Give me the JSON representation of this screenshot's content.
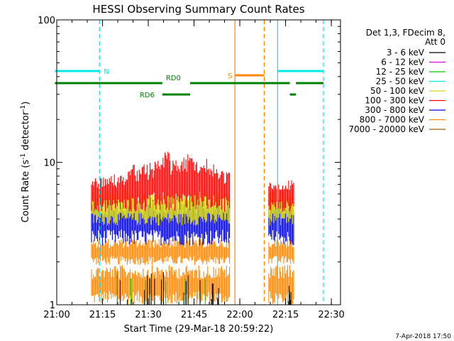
{
  "chart_data": {
    "type": "line",
    "title": "HESSI Observing Summary Count Rates",
    "xlabel": "Start Time (29-Mar-18 20:59:22)",
    "ylabel_main": "Count Rate (s",
    "ylabel_sup1": "-1",
    "ylabel_mid": " detector",
    "ylabel_sup2": "-1",
    "ylabel_end": ")",
    "yscale": "log",
    "ylim": [
      1,
      100
    ],
    "xlim_min": [
      0.6,
      93.6
    ],
    "yticks": [
      {
        "value": 1,
        "label": "1"
      },
      {
        "value": 10,
        "label": "10"
      },
      {
        "value": 100,
        "label": "100"
      }
    ],
    "xticks": [
      {
        "min": 0.6,
        "label": "21:00"
      },
      {
        "min": 15.6,
        "label": "21:15"
      },
      {
        "min": 30.6,
        "label": "21:30"
      },
      {
        "min": 45.6,
        "label": "21:45"
      },
      {
        "min": 60.6,
        "label": "22:00"
      },
      {
        "min": 75.6,
        "label": "22:15"
      },
      {
        "min": 90.6,
        "label": "22:30"
      }
    ],
    "legend_title": [
      "Det 1,3, FDecim 8,",
      "Att 0"
    ],
    "legend_position": "right",
    "series": [
      {
        "name": "3 - 6 keV",
        "color": "#000000"
      },
      {
        "name": "6 - 12 keV",
        "color": "#e000e0"
      },
      {
        "name": "12 - 25 keV",
        "color": "#00d000"
      },
      {
        "name": "25 - 50 keV",
        "color": "#00e8e8"
      },
      {
        "name": "50 - 100 keV",
        "color": "#d8d800"
      },
      {
        "name": "100 - 300 keV",
        "color": "#ff0000"
      },
      {
        "name": "300 - 800 keV",
        "color": "#0000e0"
      },
      {
        "name": "800 - 7000 keV",
        "color": "#ff8800"
      },
      {
        "name": "7000 - 20000 keV",
        "color": "#a06000"
      }
    ],
    "data_segments": [
      {
        "x_min": [
          12.0,
          57.3
        ]
      },
      {
        "x_min": [
          70.1,
          78.3
        ]
      }
    ],
    "band_levels": {
      "red": [
        4.5,
        7.5
      ],
      "red_peak": 12.5,
      "yellow": [
        3.6,
        6.5
      ],
      "blue": [
        2.6,
        5.5
      ],
      "orange_upper": [
        1.9,
        2.9
      ],
      "orange_lower": [
        1.0,
        1.9
      ]
    },
    "flag_bars": [
      {
        "label": "N",
        "color": "#00e8e8",
        "y": 100,
        "segments": [
          [
            0.0,
            14.6
          ],
          [
            73.0,
            88.0
          ]
        ]
      },
      {
        "label": "S",
        "color": "#ff8800",
        "y": 106,
        "segments": [
          [
            59.0,
            68.6
          ]
        ]
      },
      {
        "label": "RD0",
        "color": "#008000",
        "y": 117,
        "segments": [
          [
            0.0,
            35.2
          ],
          [
            44.3,
            77.0
          ],
          [
            79.0,
            88.0
          ]
        ]
      },
      {
        "label": "RD6",
        "color": "#008000",
        "y": 133,
        "segments": [
          [
            35.2,
            44.3
          ],
          [
            77.0,
            79.0
          ]
        ]
      }
    ],
    "saa_lines": [
      {
        "x_min": 0.3,
        "color": "#00e8e8",
        "style": "solid"
      },
      {
        "x_min": 14.6,
        "color": "#00e8e8",
        "style": "dashed"
      },
      {
        "x_min": 59.0,
        "color": "#ff8800",
        "style": "solid"
      },
      {
        "x_min": 68.6,
        "color": "#ff8800",
        "style": "dashed"
      },
      {
        "x_min": 73.0,
        "color": "#00e8e8",
        "style": "solid"
      },
      {
        "x_min": 88.0,
        "color": "#00e8e8",
        "style": "dashed"
      }
    ]
  },
  "footer": {
    "date_stamp": "7-Apr-2018 17:50"
  }
}
